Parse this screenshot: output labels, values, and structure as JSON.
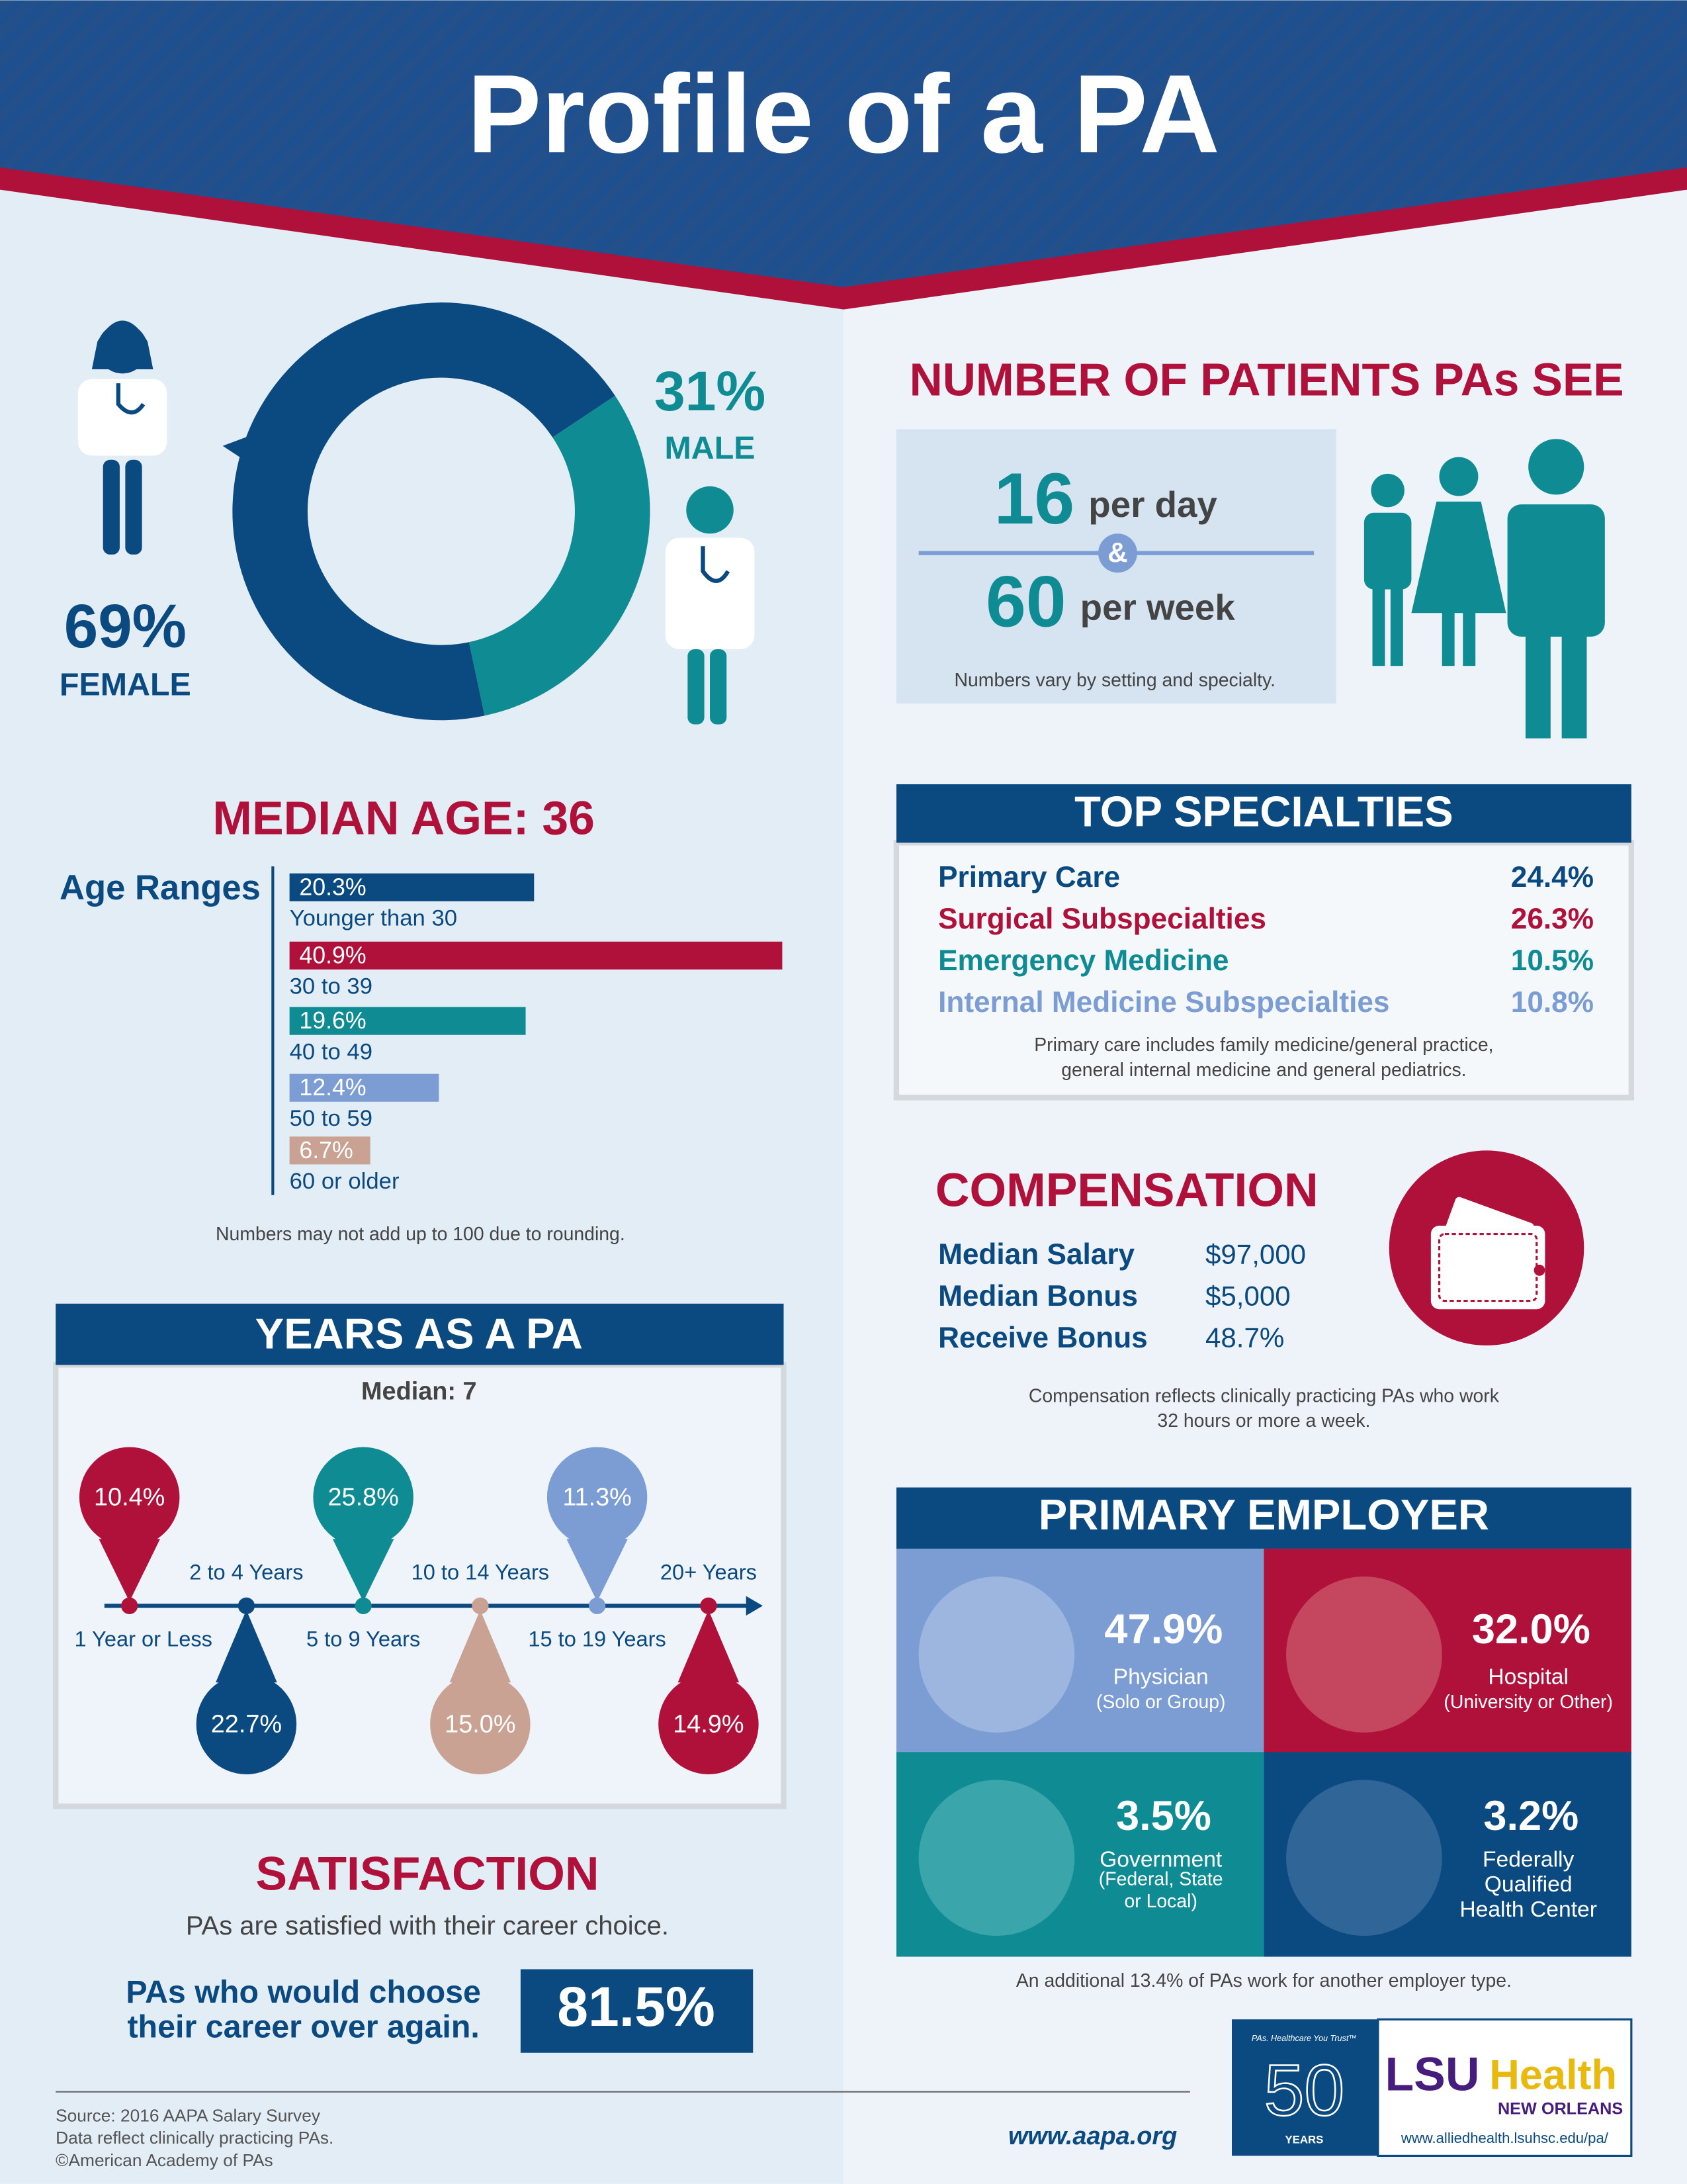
{
  "header": {
    "title": "Profile of a PA"
  },
  "chart_data": [
    {
      "type": "donut",
      "categories": [
        "FEMALE",
        "MALE"
      ],
      "values": [
        69,
        31
      ],
      "value_labels": [
        "69%",
        "31%"
      ],
      "colors": [
        "#0b4a80",
        "#0f8c93"
      ]
    },
    {
      "type": "hbar",
      "title": "MEDIAN AGE: 36",
      "subtitle": "Age Ranges",
      "categories": [
        "Younger than 30",
        "30 to 39",
        "40 to 49",
        "50 to 59",
        "60 or older"
      ],
      "values": [
        20.3,
        40.9,
        19.6,
        12.4,
        6.7
      ],
      "value_labels": [
        "20.3%",
        "40.9%",
        "19.6%",
        "12.4%",
        "6.7%"
      ],
      "colors": [
        "#0b4a80",
        "#b0113a",
        "#0f8c93",
        "#7b9dd4",
        "#c9a293"
      ],
      "note": "Numbers may not add up to 100 due to rounding."
    },
    {
      "type": "timeline",
      "title": "YEARS AS A PA",
      "subtitle": "Median: 7",
      "categories": [
        "1 Year or Less",
        "2 to 4 Years",
        "5 to 9 Years",
        "10 to 14 Years",
        "15 to 19 Years",
        "20+ Years"
      ],
      "values": [
        10.4,
        22.7,
        25.8,
        15.0,
        11.3,
        14.9
      ],
      "value_labels": [
        "10.4%",
        "22.7%",
        "25.8%",
        "15.0%",
        "11.3%",
        "14.9%"
      ],
      "colors": [
        "#b0113a",
        "#0b4a80",
        "#0f8c93",
        "#c9a293",
        "#7b9dd4",
        "#b0113a"
      ]
    }
  ],
  "patients": {
    "title": "NUMBER OF PATIENTS PAs SEE",
    "daily": "16",
    "daily_unit": "per day",
    "connector": "&",
    "weekly": "60",
    "weekly_unit": "per week",
    "note": "Numbers vary by setting and specialty."
  },
  "specialties": {
    "title": "TOP SPECIALTIES",
    "rows": [
      [
        "Primary Care",
        "24.4%"
      ],
      [
        "Surgical Subspecialties",
        "26.3%"
      ],
      [
        "Emergency Medicine",
        "10.5%"
      ],
      [
        "Internal Medicine Subspecialties",
        "10.8%"
      ]
    ],
    "note": [
      "Primary care includes family medicine/general practice,",
      "general internal medicine and general pediatrics."
    ]
  },
  "compensation": {
    "title": "COMPENSATION",
    "rows": [
      [
        "Median Salary",
        "$97,000"
      ],
      [
        "Median Bonus",
        "$5,000"
      ],
      [
        "Receive Bonus",
        "48.7%"
      ]
    ],
    "note": [
      "Compensation reflects clinically practicing PAs who work",
      "32 hours or more a week."
    ]
  },
  "satisfaction": {
    "title": "SATISFACTION",
    "subtitle": "PAs are satisfied with their career choice.",
    "statement": [
      "PAs who would choose",
      "their career over again."
    ],
    "value": "81.5%"
  },
  "employer": {
    "title": "PRIMARY EMPLOYER",
    "tiles": [
      {
        "value": "47.9%",
        "lines": [
          "Physician",
          "(Solo or Group)"
        ]
      },
      {
        "value": "32.0%",
        "lines": [
          "Hospital",
          "(University or Other)"
        ]
      },
      {
        "value": "3.5%",
        "lines": [
          "Government",
          "(Federal, State",
          "or Local)"
        ]
      },
      {
        "value": "3.2%",
        "lines": [
          "Federally",
          "Qualified",
          "Health Center"
        ]
      }
    ],
    "note": "An additional 13.4% of PAs work for another employer type."
  },
  "footer": {
    "source": [
      "Source: 2016 AAPA Salary Survey",
      "Data reflect clinically practicing PAs.",
      "©American Academy of PAs"
    ],
    "url": "www.aapa.org",
    "aapa": {
      "tagline": "PAs. Healthcare You Trust™",
      "number": "50",
      "label": "YEARS"
    },
    "lsu": {
      "name1": "LSU",
      "name2": "Health",
      "city": "NEW ORLEANS",
      "url": "www.alliedhealth.lsuhsc.edu/pa/"
    }
  }
}
